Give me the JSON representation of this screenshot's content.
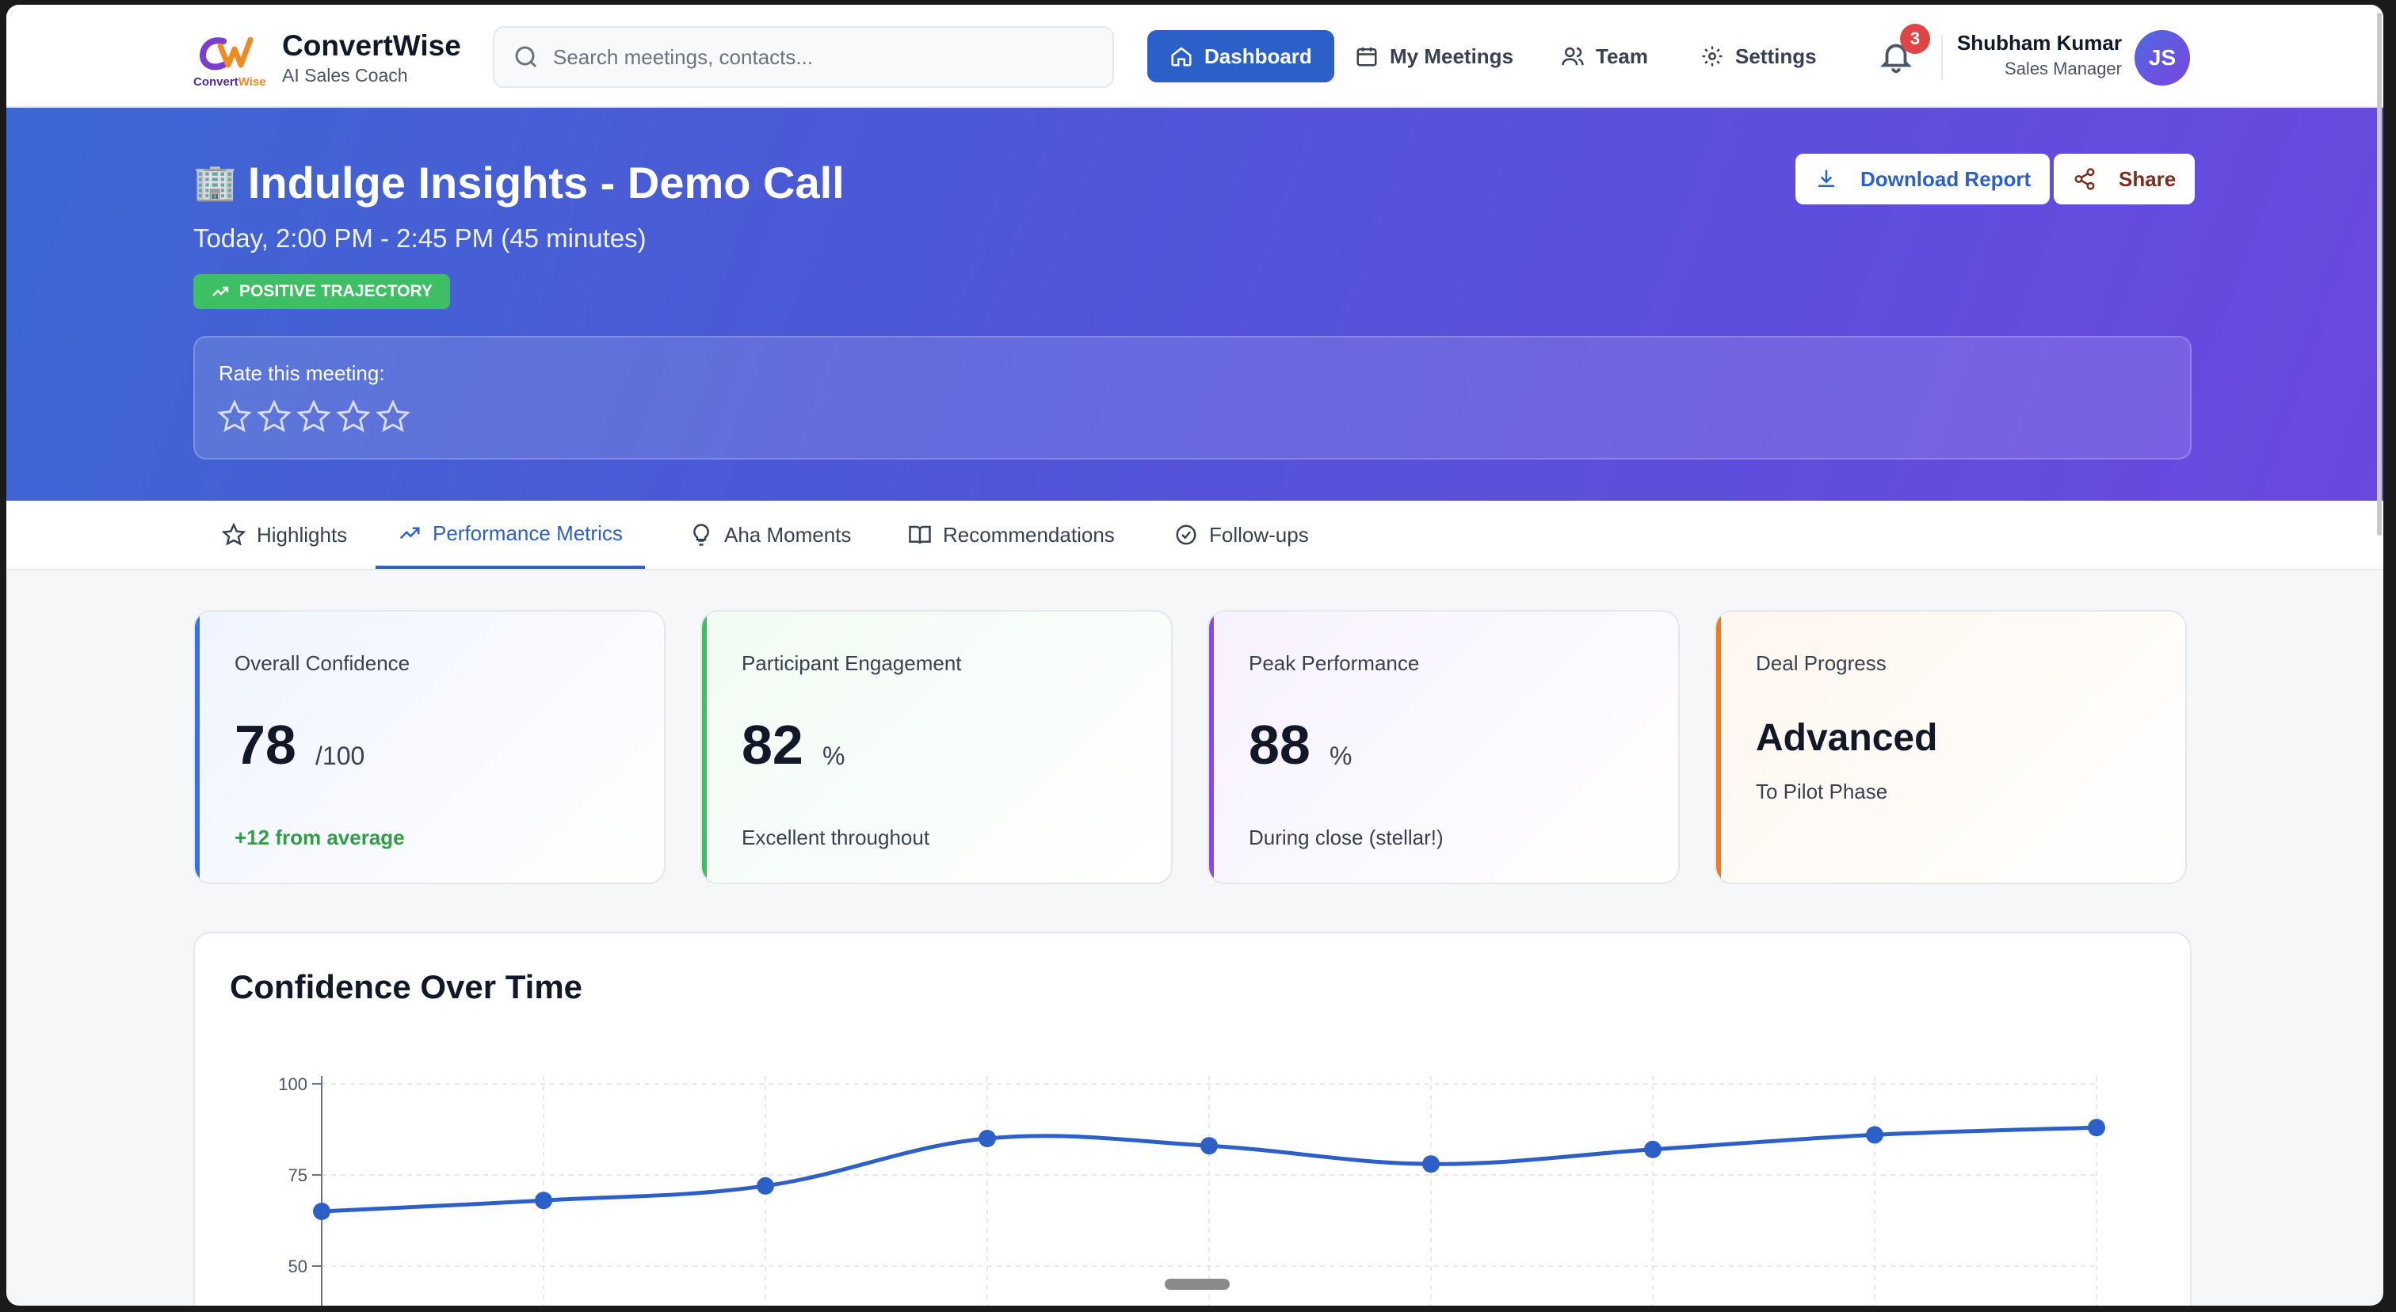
{
  "app": {
    "name": "ConvertWise",
    "tagline": "AI Sales Coach",
    "logo_text": "ConvertWise"
  },
  "search": {
    "placeholder": "Search meetings, contacts...",
    "value": ""
  },
  "nav": {
    "dashboard": "Dashboard",
    "meetings": "My Meetings",
    "team": "Team",
    "settings": "Settings"
  },
  "notifications": {
    "count": "3"
  },
  "user": {
    "name": "Shubham Kumar",
    "role": "Sales Manager",
    "initials": "JS"
  },
  "meeting": {
    "icon": "🏢",
    "title": "Indulge Insights - Demo Call",
    "when": "Today, 2:00 PM - 2:45 PM (45 minutes)",
    "trajectory": "POSITIVE TRAJECTORY",
    "rate_label": "Rate this meeting:",
    "rating": 0,
    "download_label": "Download Report",
    "share_label": "Share"
  },
  "tabs": {
    "highlights": "Highlights",
    "performance": "Performance Metrics",
    "aha": "Aha Moments",
    "recommendations": "Recommendations",
    "followups": "Follow-ups",
    "active": "performance"
  },
  "metrics": [
    {
      "title": "Overall Confidence",
      "value": "78",
      "unit": "/100",
      "note": "+12 from average",
      "accent": "#3b6fe0"
    },
    {
      "title": "Participant Engagement",
      "value": "82",
      "unit": "%",
      "note": "Excellent throughout",
      "accent": "#3fbf63"
    },
    {
      "title": "Peak Performance",
      "value": "88",
      "unit": "%",
      "note": "During close (stellar!)",
      "accent": "#8a4ae0"
    },
    {
      "title": "Deal Progress",
      "value": "Advanced",
      "unit": "",
      "note": "To Pilot Phase",
      "accent": "#ee7a22"
    }
  ],
  "chart_title": "Confidence Over Time",
  "chart_data": {
    "type": "line",
    "title": "Confidence Over Time",
    "x": [
      0,
      1,
      2,
      3,
      4,
      5,
      6,
      7,
      8
    ],
    "values": [
      65,
      68,
      72,
      85,
      83,
      78,
      82,
      86,
      88
    ],
    "yticks": [
      "100",
      "75",
      "50"
    ],
    "ylim_visible": [
      50,
      100
    ],
    "grid": true,
    "color": "#2c60c8"
  }
}
